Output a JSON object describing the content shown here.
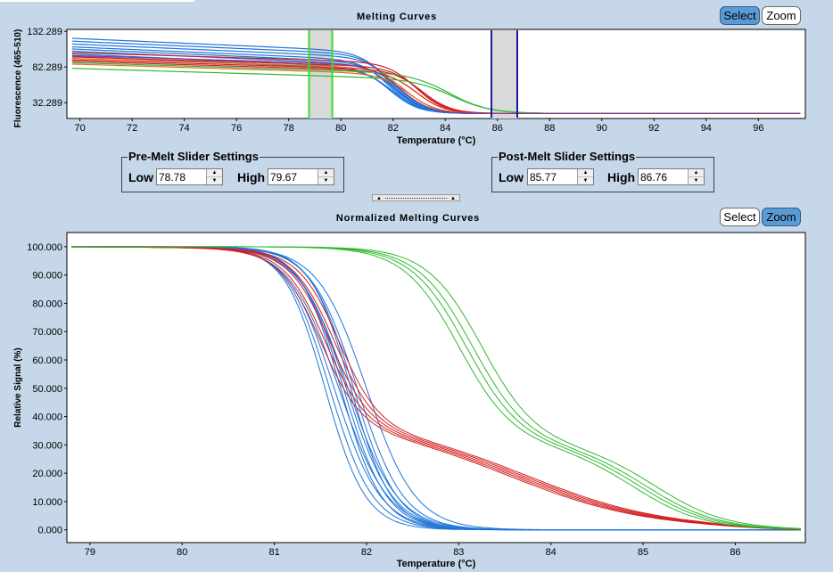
{
  "top_panel": {
    "title": "Melting Curves",
    "select_label": "Select",
    "zoom_label": "Zoom",
    "chart_data": {
      "type": "line",
      "title": "Melting Curves",
      "xlabel": "Temperature (°C)",
      "ylabel": "Fluorescence (465-510)",
      "xlim": [
        69.5,
        97.8
      ],
      "ylim": [
        10,
        135
      ],
      "xticks": [
        "70",
        "72",
        "74",
        "76",
        "78",
        "80",
        "82",
        "84",
        "86",
        "88",
        "90",
        "92",
        "94",
        "96"
      ],
      "yticks": [
        "132.289",
        "82.289",
        "32.289"
      ],
      "pre_melt_markers": [
        78.78,
        79.67
      ],
      "post_melt_markers": [
        85.77,
        86.76
      ],
      "series": [
        {
          "name": "blue",
          "color": "#1e74d8",
          "start_values": [
            122,
            118,
            114,
            110,
            107,
            104,
            100,
            97
          ],
          "tm": 82.0
        },
        {
          "name": "red",
          "color": "#d42020",
          "start_values": [
            102,
            96,
            92,
            90
          ],
          "tm": 83.0
        },
        {
          "name": "green",
          "color": "#30b830",
          "start_values": [
            88,
            80
          ],
          "tm": 84.3
        },
        {
          "name": "orange",
          "color": "#e07020",
          "start_values": [
            94,
            86
          ],
          "tm": 82.6
        },
        {
          "name": "purple",
          "color": "#7a3aa0",
          "start_values": [
            98
          ],
          "tm": 82.4
        }
      ],
      "baseline_value": 17
    }
  },
  "pre_melt": {
    "title": "Pre-Melt Slider Settings",
    "low_label": "Low",
    "low_value": "78.78",
    "high_label": "High",
    "high_value": "79.67"
  },
  "post_melt": {
    "title": "Post-Melt Slider Settings",
    "low_label": "Low",
    "low_value": "85.77",
    "high_label": "High",
    "high_value": "86.76"
  },
  "bottom_panel": {
    "title": "Normalized Melting Curves",
    "select_label": "Select",
    "zoom_label": "Zoom",
    "chart_data": {
      "type": "line",
      "title": "Normalized Melting Curves",
      "xlabel": "Temperature (°C)",
      "ylabel": "Relative Signal (%)",
      "xlim": [
        78.75,
        86.76
      ],
      "ylim": [
        -4.5,
        105
      ],
      "xticks": [
        "79",
        "80",
        "81",
        "82",
        "83",
        "84",
        "85",
        "86"
      ],
      "yticks": [
        "100.000",
        "90.000",
        "80.000",
        "70.000",
        "60.000",
        "50.000",
        "40.000",
        "30.000",
        "20.000",
        "10.000",
        "0.000"
      ],
      "series": [
        {
          "name": "blue",
          "color": "#1e74d8",
          "count": 12,
          "tm_values": [
            81.55,
            81.6,
            81.65,
            81.7,
            81.72,
            81.75,
            81.78,
            81.8,
            81.83,
            81.86,
            81.9,
            82.0
          ]
        },
        {
          "name": "red",
          "color": "#d42020",
          "count": 5,
          "tm_values": [
            81.85,
            81.9,
            81.95,
            82.0,
            82.05
          ]
        },
        {
          "name": "green",
          "color": "#30b830",
          "count": 4,
          "tm_values": [
            83.0,
            83.08,
            83.15,
            83.25
          ]
        }
      ]
    }
  }
}
